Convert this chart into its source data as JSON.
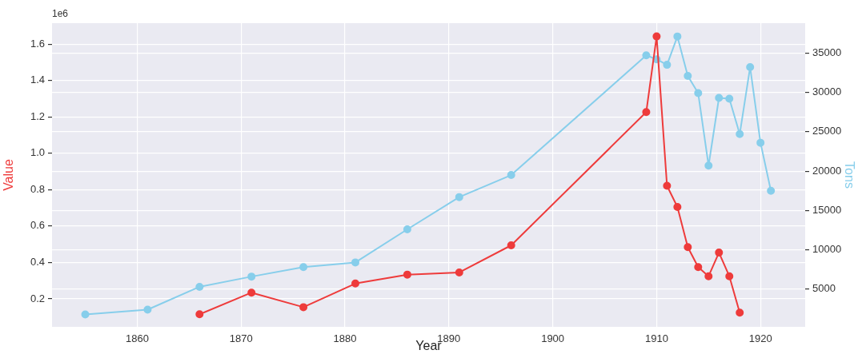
{
  "chart_data": {
    "type": "line",
    "xlabel": "Year",
    "ylabel": "Value",
    "y2label": "Tons",
    "annotations": [
      "1e6"
    ],
    "xlim": [
      1851.8,
      1924.3
    ],
    "xticks": [
      1860,
      1870,
      1880,
      1890,
      1900,
      1910,
      1920
    ],
    "ylim": [
      0.046,
      1.715
    ],
    "yticks": [
      0.2,
      0.4,
      0.6,
      0.8,
      {
        "value": 1,
        "label": "1.0"
      },
      1.2,
      1.4,
      1.6
    ],
    "y2lim": [
      220,
      38790
    ],
    "y2ticks": [
      5000,
      10000,
      15000,
      20000,
      25000,
      30000,
      35000
    ],
    "grid": true,
    "legend": false,
    "marker": "circle",
    "line_style": "solid",
    "series": [
      {
        "color": "#ee3b3b",
        "x": [
          1866,
          1871,
          1876,
          1881,
          1886,
          1891,
          1896,
          1909,
          1910,
          1911,
          1912,
          1913,
          1914,
          1915,
          1916,
          1917,
          1918
        ],
        "values": [
          0.115,
          0.234,
          0.154,
          0.284,
          0.333,
          0.345,
          0.494,
          1.226,
          1.642,
          0.821,
          0.705,
          0.484,
          0.374,
          0.324,
          0.454,
          0.324,
          0.124
        ]
      },
      {
        "color": "#87ceeb",
        "axis": "y2",
        "x": [
          1855,
          1861,
          1866,
          1871,
          1876,
          1881,
          1886,
          1891,
          1896,
          1909,
          1910,
          1911,
          1912,
          1913,
          1914,
          1915,
          1916,
          1917,
          1918,
          1919,
          1920,
          1921
        ],
        "values": [
          1800,
          2400,
          5300,
          6600,
          7800,
          8400,
          12600,
          16700,
          19500,
          34700,
          34200,
          33500,
          37100,
          32100,
          29900,
          20700,
          29300,
          29200,
          24700,
          33200,
          23600,
          17500
        ]
      }
    ]
  }
}
